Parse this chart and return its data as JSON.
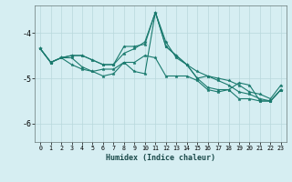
{
  "xlabel": "Humidex (Indice chaleur)",
  "bg_color": "#d6eef2",
  "grid_color": "#b8d8dc",
  "line_color": "#1a7a6e",
  "marker_color": "#1a7a6e",
  "xlim": [
    -0.5,
    23.5
  ],
  "ylim": [
    -6.4,
    -3.4
  ],
  "yticks": [
    -6,
    -5,
    -4
  ],
  "xticks": [
    0,
    1,
    2,
    3,
    4,
    5,
    6,
    7,
    8,
    9,
    10,
    11,
    12,
    13,
    14,
    15,
    16,
    17,
    18,
    19,
    20,
    21,
    22,
    23
  ],
  "series": [
    [
      0,
      1,
      2,
      3,
      4,
      5,
      6,
      7,
      8,
      9,
      10,
      11,
      12,
      13,
      14,
      15,
      16,
      17,
      18,
      19,
      20,
      21,
      22,
      23
    ],
    [
      -4.35,
      -4.65,
      -4.55,
      -4.5,
      -4.5,
      -4.6,
      -4.7,
      -4.7,
      -4.45,
      -4.35,
      -4.2,
      -3.55,
      -4.2,
      -4.55,
      -4.7,
      -4.85,
      -4.95,
      -5.0,
      -5.05,
      -5.15,
      -5.3,
      -5.35,
      -5.45,
      -5.15
    ],
    [
      -4.35,
      -4.65,
      -4.55,
      -4.55,
      -4.75,
      -4.85,
      -4.95,
      -4.9,
      -4.65,
      -4.65,
      -4.5,
      -4.55,
      -4.95,
      -4.95,
      -4.95,
      -5.05,
      -5.25,
      -5.3,
      -5.25,
      -5.45,
      -5.45,
      -5.5,
      -5.5,
      -5.25
    ],
    [
      -4.35,
      -4.65,
      -4.55,
      -4.7,
      -4.8,
      -4.85,
      -4.8,
      -4.8,
      -4.65,
      -4.85,
      -4.9,
      -3.55,
      -4.3,
      -4.5,
      -4.7,
      -5.0,
      -5.2,
      -5.25,
      -5.25,
      -5.1,
      -5.15,
      -5.5,
      -5.5,
      -5.25
    ],
    [
      -4.35,
      -4.65,
      -4.55,
      -4.5,
      -4.5,
      -4.6,
      -4.7,
      -4.7,
      -4.3,
      -4.3,
      -4.25,
      -3.55,
      -4.3,
      -4.5,
      -4.7,
      -5.0,
      -4.95,
      -5.05,
      -5.15,
      -5.3,
      -5.35,
      -5.45,
      -5.5,
      -5.25
    ]
  ]
}
